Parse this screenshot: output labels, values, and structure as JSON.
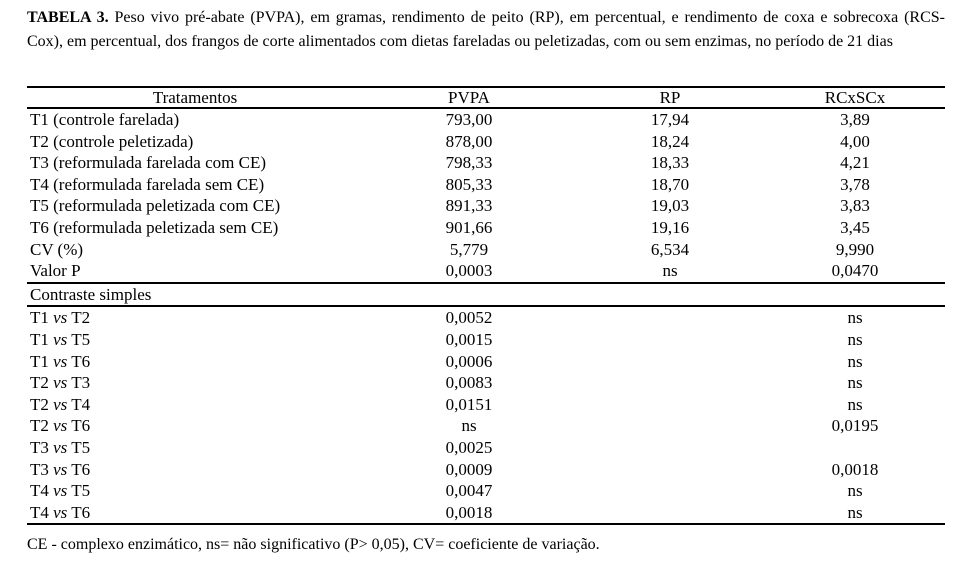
{
  "caption": {
    "label": "TABELA 3.",
    "line1": "Peso vivo pré-abate (PVPA), em gramas, rendimento de peito (RP), em percentual, e rendimento de coxa e sobrecoxa (RCS-",
    "line2": "Cox), em percentual, dos frangos de corte alimentados com dietas fareladas ou peletizadas, com ou sem enzimas, no período de 21 dias"
  },
  "table": {
    "headers": {
      "treatments": "Tratamentos",
      "pvpa": "PVPA",
      "rp": "RP",
      "rcxscx": "RCxSCx"
    },
    "main_rows": [
      {
        "label": "T1 (controle farelada)",
        "pvpa": "793,00",
        "rp": "17,94",
        "rcxscx": "3,89"
      },
      {
        "label": "T2 (controle peletizada)",
        "pvpa": "878,00",
        "rp": "18,24",
        "rcxscx": "4,00"
      },
      {
        "label": "T3 (reformulada farelada com CE)",
        "pvpa": "798,33",
        "rp": "18,33",
        "rcxscx": "4,21"
      },
      {
        "label": "T4 (reformulada farelada sem CE)",
        "pvpa": "805,33",
        "rp": "18,70",
        "rcxscx": "3,78"
      },
      {
        "label": "T5 (reformulada peletizada com CE)",
        "pvpa": "891,33",
        "rp": "19,03",
        "rcxscx": "3,83"
      },
      {
        "label": "T6 (reformulada peletizada sem CE)",
        "pvpa": "901,66",
        "rp": "19,16",
        "rcxscx": "3,45"
      },
      {
        "label": "CV (%)",
        "pvpa": "5,779",
        "rp": "6,534",
        "rcxscx": "9,990"
      },
      {
        "label": "Valor P",
        "pvpa": "0,0003",
        "rp": "ns",
        "rcxscx": "0,0470"
      }
    ],
    "section_header": "Contraste simples",
    "contrast_rows": [
      {
        "a": "T1",
        "vs": "vs",
        "b": "T2",
        "pvpa": "0,0052",
        "rp": "",
        "rcxscx": "ns"
      },
      {
        "a": "T1",
        "vs": "vs",
        "b": "T5",
        "pvpa": "0,0015",
        "rp": "",
        "rcxscx": "ns"
      },
      {
        "a": "T1",
        "vs": "vs",
        "b": "T6",
        "pvpa": "0,0006",
        "rp": "",
        "rcxscx": "ns"
      },
      {
        "a": "T2",
        "vs": "vs",
        "b": "T3",
        "pvpa": "0,0083",
        "rp": "",
        "rcxscx": "ns"
      },
      {
        "a": "T2",
        "vs": "vs",
        "b": "T4",
        "pvpa": "0,0151",
        "rp": "",
        "rcxscx": "ns"
      },
      {
        "a": "T2",
        "vs": "vs",
        "b": "T6",
        "pvpa": "ns",
        "rp": "",
        "rcxscx": "0,0195"
      },
      {
        "a": "T3",
        "vs": "vs",
        "b": "T5",
        "pvpa": "0,0025",
        "rp": "",
        "rcxscx": ""
      },
      {
        "a": "T3",
        "vs": "vs",
        "b": "T6",
        "pvpa": "0,0009",
        "rp": "",
        "rcxscx": "0,0018"
      },
      {
        "a": "T4",
        "vs": "vs",
        "b": "T5",
        "pvpa": "0,0047",
        "rp": "",
        "rcxscx": "ns"
      },
      {
        "a": "T4",
        "vs": "vs",
        "b": "T6",
        "pvpa": "0,0018",
        "rp": "",
        "rcxscx": "ns"
      }
    ]
  },
  "footnote": "CE - complexo enzimático, ns= não significativo (P> 0,05), CV= coeficiente de variação."
}
